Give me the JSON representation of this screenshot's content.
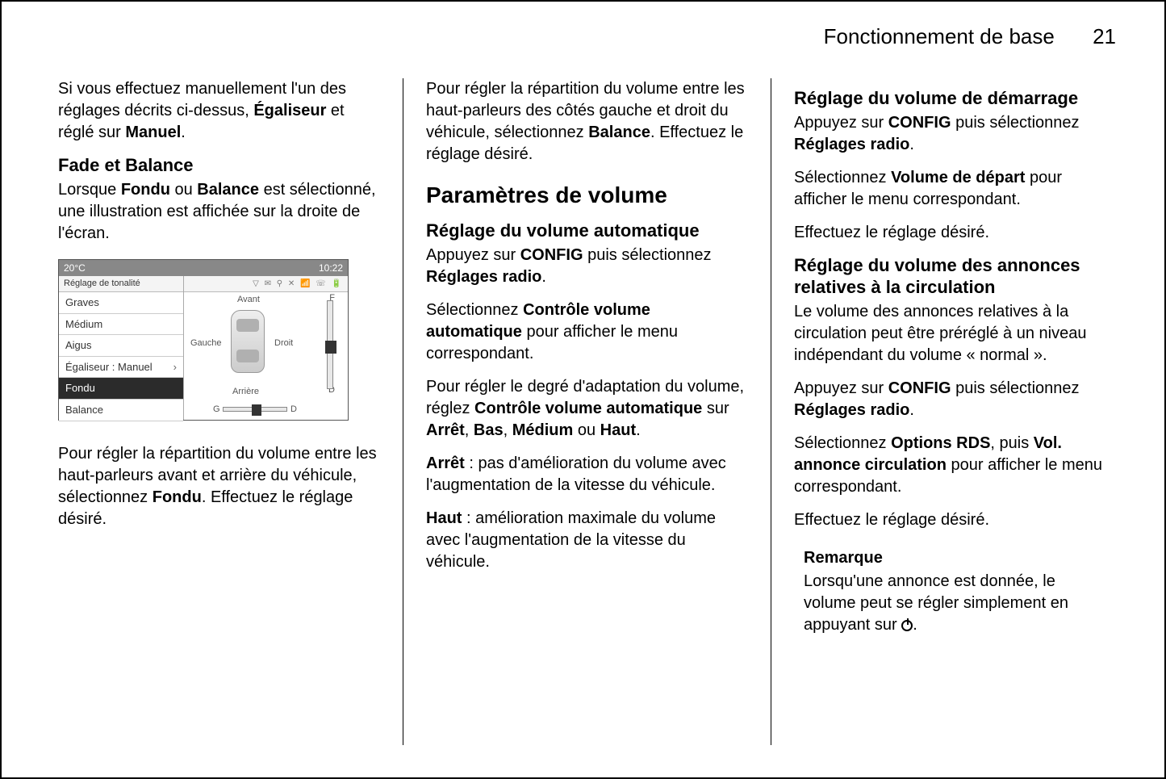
{
  "header": {
    "title": "Fonctionnement de base",
    "page_number": "21"
  },
  "col1": {
    "intro": {
      "pre": "Si vous effectuez manuellement l'un des réglages décrits ci-dessus, ",
      "bold1": "Égaliseur",
      "mid": " et réglé sur ",
      "bold2": "Manuel",
      "post": "."
    },
    "fade_balance_heading": "Fade et Balance",
    "fb_p1": {
      "pre": "Lorsque ",
      "b1": "Fondu",
      "mid1": " ou ",
      "b2": "Balance",
      "post": " est sélectionné, une illustration est affichée sur la droite de l'écran."
    },
    "screenshot": {
      "temp": "20°C",
      "time": "10:22",
      "header_left": "Réglage de tonalité",
      "icons": "▽ ✉ ⚲ ✕ 📶 ☏ 🔋",
      "items": [
        {
          "label": "Graves",
          "selected": false
        },
        {
          "label": "Médium",
          "selected": false
        },
        {
          "label": "Aigus",
          "selected": false
        },
        {
          "label": "Égaliseur : Manuel",
          "selected": false,
          "arrow": "›"
        },
        {
          "label": "Fondu",
          "selected": true
        },
        {
          "label": "Balance",
          "selected": false
        }
      ],
      "labels": {
        "front": "Avant",
        "rear": "Arrière",
        "left": "Gauche",
        "right": "Droit",
        "F": "F",
        "D_right": "D",
        "G": "G",
        "D_bottom": "D"
      }
    },
    "fb_p2": {
      "pre": "Pour régler la répartition du volume entre les haut-parleurs avant et arrière du véhicule, sélectionnez ",
      "b": "Fondu",
      "post": ". Effectuez le réglage désiré."
    }
  },
  "col2": {
    "top_p": {
      "pre": "Pour régler la répartition du volume entre les haut-parleurs des côtés gauche et droit du véhicule, sélectionnez ",
      "b": "Balance",
      "post": ". Effectuez le réglage désiré."
    },
    "section": "Paramètres de volume",
    "auto_heading": "Réglage du volume automatique",
    "auto_p1": {
      "pre": "Appuyez sur ",
      "b1": "CONFIG",
      "mid": " puis sélectionnez ",
      "b2": "Réglages radio",
      "post": "."
    },
    "auto_p2": {
      "pre": "Sélectionnez ",
      "b": "Contrôle volume automatique",
      "post": " pour afficher le menu correspondant."
    },
    "auto_p3": {
      "pre": "Pour régler le degré d'adaptation du volume, réglez ",
      "b1": "Contrôle volume automatique",
      "mid1": " sur ",
      "b2": "Arrêt",
      "c1": ", ",
      "b3": "Bas",
      "c2": ", ",
      "b4": "Médium",
      "mid2": " ou ",
      "b5": "Haut",
      "post": "."
    },
    "auto_p4": {
      "b": "Arrêt",
      "post": " : pas d'amélioration du volume avec l'augmentation de la vitesse du véhicule."
    },
    "auto_p5": {
      "b": "Haut",
      "post": " : amélioration maximale du volume avec l'augmentation de la vitesse du véhicule."
    }
  },
  "col3": {
    "start_heading": "Réglage du volume de démarrage",
    "start_p1": {
      "pre": "Appuyez sur ",
      "b1": "CONFIG",
      "mid": " puis sélectionnez ",
      "b2": "Réglages radio",
      "post": "."
    },
    "start_p2": {
      "pre": "Sélectionnez ",
      "b": "Volume de départ",
      "post": " pour afficher le menu correspondant."
    },
    "start_p3": "Effectuez le réglage désiré.",
    "traffic_heading": "Réglage du volume des annonces relatives à la circulation",
    "traffic_p1": "Le volume des annonces relatives à la circulation peut être préréglé à un niveau indépendant du volume « normal ».",
    "traffic_p2": {
      "pre": "Appuyez sur ",
      "b1": "CONFIG",
      "mid": " puis sélectionnez ",
      "b2": "Réglages radio",
      "post": "."
    },
    "traffic_p3": {
      "pre": "Sélectionnez ",
      "b1": "Options RDS",
      "mid": ", puis ",
      "b2": "Vol. annonce circulation",
      "post": " pour afficher le menu correspondant."
    },
    "traffic_p4": "Effectuez le réglage désiré.",
    "note_title": "Remarque",
    "note_body": "Lorsqu'une annonce est donnée, le volume peut se régler simplement en appuyant sur "
  }
}
